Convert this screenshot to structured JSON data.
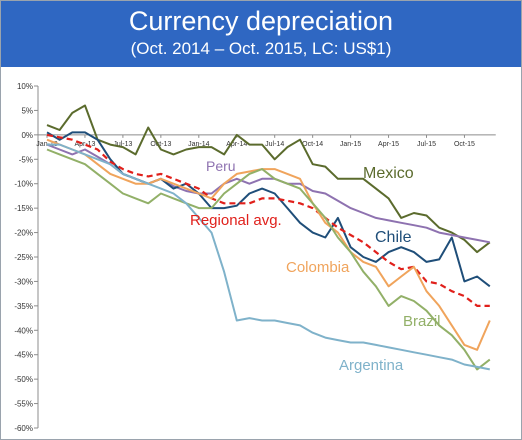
{
  "header": {
    "title": "Currency depreciation",
    "subtitle": "(Oct. 2014 – Oct. 2015, LC: US$1)"
  },
  "chart_data": {
    "type": "line",
    "title": "Currency depreciation",
    "subtitle": "(Oct. 2014 – Oct. 2015, LC: US$1)",
    "xlabel": "",
    "ylabel": "",
    "ylim": [
      -60,
      10
    ],
    "y_ticks": [
      "10%",
      "5%",
      "0%",
      "-5%",
      "-10%",
      "-15%",
      "-20%",
      "-25%",
      "-30%",
      "-35%",
      "-40%",
      "-45%",
      "-50%",
      "-55%",
      "-60%"
    ],
    "x_ticks": [
      "Jan-13",
      "Apr-13",
      "Jul-13",
      "Oct-13",
      "Jan-14",
      "Apr-14",
      "Jul-14",
      "Oct-14",
      "Jan-15",
      "Apr-15",
      "Jul-15",
      "Oct-15"
    ],
    "x_months": [
      "Jan-13",
      "Feb-13",
      "Mar-13",
      "Apr-13",
      "May-13",
      "Jun-13",
      "Jul-13",
      "Aug-13",
      "Sep-13",
      "Oct-13",
      "Nov-13",
      "Dec-13",
      "Jan-14",
      "Feb-14",
      "Mar-14",
      "Apr-14",
      "May-14",
      "Jun-14",
      "Jul-14",
      "Aug-14",
      "Sep-14",
      "Oct-14",
      "Nov-14",
      "Dec-14",
      "Jan-15",
      "Feb-15",
      "Mar-15",
      "Apr-15",
      "May-15",
      "Jun-15",
      "Jul-15",
      "Aug-15",
      "Sep-15",
      "Oct-15",
      "Nov-15",
      "Dec-15"
    ],
    "grid": false,
    "legend": "none",
    "series": [
      {
        "name": "Mexico",
        "color": "#5b6b2d",
        "dashed": false,
        "values": [
          2,
          1,
          4.5,
          6,
          -1,
          -2,
          -2.5,
          -4,
          1.5,
          -3,
          -4,
          -3,
          -2.5,
          -2.5,
          -4,
          0,
          -2,
          -2,
          -5,
          -2.5,
          -1,
          -6,
          -6.5,
          -9,
          -9,
          -9,
          -11,
          -13,
          -17,
          -16,
          -16.5,
          -19,
          -20,
          -21.5,
          -24,
          -22
        ]
      },
      {
        "name": "Peru",
        "color": "#8e72b0",
        "dashed": false,
        "values": [
          -2,
          -3,
          -4,
          -3,
          -4.5,
          -6,
          -8,
          -9,
          -10,
          -9,
          -10.5,
          -11.5,
          -12,
          -12,
          -10,
          -9,
          -10,
          -9,
          -9,
          -10,
          -10,
          -11.5,
          -12,
          -13.5,
          -15,
          -16,
          -17,
          -17.5,
          -18,
          -18.5,
          -19,
          -20,
          -20.5,
          -21,
          -21.5,
          -22
        ]
      },
      {
        "name": "Chile",
        "color": "#1f4e79",
        "dashed": false,
        "values": [
          0.5,
          -1,
          0.5,
          0.5,
          -1,
          -5,
          -8,
          -9,
          -10,
          -9,
          -11,
          -10,
          -12,
          -15,
          -15,
          -14.5,
          -12,
          -11,
          -12,
          -15,
          -18,
          -20,
          -21,
          -17,
          -23,
          -25,
          -26,
          -24,
          -23,
          -24,
          -26,
          -25.5,
          -21,
          -30,
          -29,
          -31
        ]
      },
      {
        "name": "Regional avg.",
        "color": "#e0201b",
        "dashed": true,
        "values": [
          0,
          -0.5,
          -1,
          -2,
          -3,
          -5.5,
          -7,
          -8,
          -8.5,
          -8,
          -9,
          -10,
          -11,
          -13,
          -14,
          -14,
          -14,
          -13,
          -13,
          -13.5,
          -14,
          -15,
          -17,
          -19,
          -20.5,
          -22,
          -24,
          -26,
          -27.5,
          -27,
          -30,
          -30.5,
          -32,
          -33,
          -35,
          -35
        ]
      },
      {
        "name": "Colombia",
        "color": "#f0a45c",
        "dashed": false,
        "values": [
          -1,
          -2,
          -3,
          -4,
          -6,
          -8,
          -9,
          -10,
          -10,
          -9,
          -10,
          -11,
          -12,
          -13,
          -10,
          -8,
          -7.5,
          -7,
          -7,
          -8,
          -9,
          -14,
          -18,
          -20,
          -24,
          -26,
          -27,
          -31,
          -29,
          -27,
          -32,
          -35,
          -39,
          -43,
          -44,
          -38
        ]
      },
      {
        "name": "Brazil",
        "color": "#92b068",
        "dashed": false,
        "values": [
          -3,
          -4,
          -5,
          -6,
          -8,
          -10,
          -12,
          -13,
          -14,
          -12,
          -13,
          -14,
          -15,
          -15,
          -12,
          -10,
          -8,
          -7,
          -9,
          -10,
          -11,
          -14,
          -17,
          -21,
          -24,
          -28,
          -31,
          -35,
          -33,
          -34,
          -36,
          -39,
          -41,
          -44,
          -48,
          -46
        ]
      },
      {
        "name": "Argentina",
        "color": "#7fb2ca",
        "dashed": false,
        "values": [
          -2,
          -2,
          -3,
          -4,
          -5,
          -6,
          -8,
          -9,
          -10,
          -11,
          -12,
          -14,
          -17,
          -20,
          -28,
          -38,
          -37.5,
          -38,
          -38,
          -38.5,
          -39,
          -40.5,
          -41.5,
          -42,
          -42.5,
          -42.5,
          -43,
          -43.5,
          -44,
          -44.5,
          -45,
          -45.5,
          -46,
          -47,
          -47.5,
          -48
        ]
      }
    ],
    "labels": {
      "Mexico": "Mexico",
      "Peru": "Peru",
      "Chile": "Chile",
      "Regional avg.": "Regional avg.",
      "Colombia": "Colombia",
      "Brazil": "Brazil",
      "Argentina": "Argentina"
    }
  }
}
